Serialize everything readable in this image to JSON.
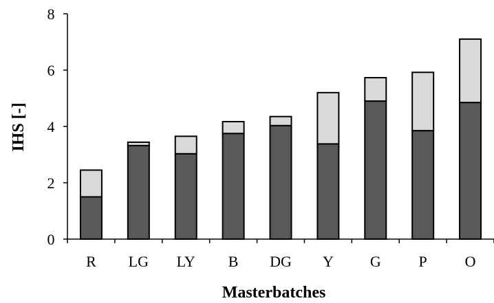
{
  "chart_data": {
    "type": "bar",
    "stacked": true,
    "title": "",
    "xlabel": "Masterbatches",
    "ylabel": "IHS [-]",
    "ylim": [
      0,
      8
    ],
    "yticks": [
      "0",
      "2",
      "4",
      "6",
      "8"
    ],
    "grid": false,
    "categories": [
      "R",
      "LG",
      "LY",
      "B",
      "DG",
      "Y",
      "G",
      "P",
      "O"
    ],
    "series": [
      {
        "color": "#595959",
        "values": [
          1.5,
          3.32,
          3.03,
          3.75,
          4.03,
          3.38,
          4.9,
          3.85,
          4.85
        ]
      },
      {
        "color": "#d9d9d9",
        "values": [
          0.95,
          0.12,
          0.62,
          0.42,
          0.32,
          1.82,
          0.83,
          2.07,
          2.25
        ]
      }
    ]
  }
}
